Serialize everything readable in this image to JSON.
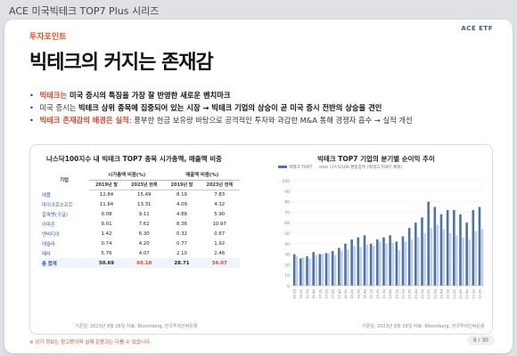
{
  "window": {
    "title": "ACE 미국빅테크 TOP7 Plus 시리즈"
  },
  "slide": {
    "logo": "ACE ETF",
    "badge": "투자포인트",
    "headline": "빅테크의 커지는 존재감",
    "bullets": [
      {
        "a": "빅테크는 ",
        "b": "미국 증시의 특징을 가장 잘 반영한 새로운 벤치마크",
        "c": ""
      },
      {
        "a": "미국 증시는 ",
        "b": "빅테크 상위 종목에 집중",
        "c": "되어 있는 시장 → 빅테크 기업의 상승이 곧 미국 증시 전반의 상승을 견인"
      },
      {
        "a": "빅테크 존재감의 배경은 실적",
        "b": ": 풍부한 현금 보유량 바탕으로 공격적인 투자와 과감한 M&A 통해 경쟁자 흡수 → 실적 개선",
        "c": ""
      }
    ],
    "footnote": "※ 상기 정보는 참고용이며 실제 운용과는 다를 수 있습니다.",
    "page": "9 / 30"
  },
  "table": {
    "title": "나스닥100지수 내 빅테크 TOP7 종목 시가총액, 매출액 비중",
    "col_label": "기업",
    "group1": "시가총액 비중(%)",
    "group2": "매출액 비중(%)",
    "sub": [
      "2019년 말",
      "2023년 현재",
      "2019년 말",
      "2023년 현재"
    ],
    "rows": [
      {
        "name": "애플",
        "v": [
          "12.84",
          "15.49",
          "8.19",
          "7.83"
        ]
      },
      {
        "name": "마이크로소프트",
        "v": [
          "11.84",
          "13.31",
          "4.09",
          "4.32"
        ]
      },
      {
        "name": "알파벳(구글)",
        "v": [
          "9.08",
          "9.11",
          "4.88",
          "5.90"
        ]
      },
      {
        "name": "아마존",
        "v": [
          "9.01",
          "7.62",
          "8.36",
          "10.97"
        ]
      },
      {
        "name": "엔비디아",
        "v": [
          "1.42",
          "6.30",
          "0.32",
          "0.67"
        ]
      },
      {
        "name": "테슬라",
        "v": [
          "0.74",
          "4.20",
          "0.77",
          "1.92"
        ]
      },
      {
        "name": "메타",
        "v": [
          "5.76",
          "4.07",
          "2.10",
          "2.46"
        ]
      }
    ],
    "total": {
      "name": "총 합계",
      "v": [
        "50.69",
        "60.10",
        "28.71",
        "34.07"
      ]
    },
    "source": "기준일: 2023년 8월 28일    자료: Bloomberg, 한국투자신탁운용"
  },
  "chart_data": {
    "type": "bar",
    "title": "빅테크 TOP7 기업의 분기별 순이익 추이",
    "legend": [
      "빅테크 TOP7",
      "나스닥100 편입종목 (빅테크 TOP7 제외)"
    ],
    "colors": {
      "bigtech": "#4a72b0",
      "others": "#c5cfdf"
    },
    "categories": [
      "16.1Q",
      "16.2Q",
      "16.3Q",
      "16.4Q",
      "17.1Q",
      "17.2Q",
      "17.3Q",
      "17.4Q",
      "18.1Q",
      "18.2Q",
      "18.3Q",
      "18.4Q",
      "19.1Q",
      "19.2Q",
      "19.3Q",
      "19.4Q",
      "20.1Q",
      "20.2Q",
      "20.3Q",
      "20.4Q",
      "21.1Q",
      "21.2Q",
      "21.3Q",
      "21.4Q",
      "22.1Q",
      "22.2Q",
      "22.3Q",
      "22.4Q",
      "23.1Q",
      "23.2Q"
    ],
    "series": [
      {
        "name": "빅테크 TOP7",
        "values": [
          30,
          26,
          28,
          32,
          30,
          31,
          33,
          36,
          40,
          44,
          46,
          48,
          40,
          44,
          46,
          48,
          42,
          47,
          55,
          60,
          65,
          80,
          75,
          68,
          72,
          72,
          68,
          60,
          72,
          75
        ]
      },
      {
        "name": "나스닥100 편입종목 (빅테크 TOP7 제외)",
        "values": [
          28,
          27,
          26,
          29,
          30,
          31,
          29,
          33,
          34,
          38,
          37,
          39,
          38,
          42,
          40,
          41,
          34,
          42,
          44,
          46,
          50,
          55,
          58,
          54,
          50,
          48,
          46,
          44,
          52,
          54
        ]
      }
    ],
    "ylim": [
      0,
      100
    ],
    "yticks": [
      "100",
      "90",
      "80",
      "70",
      "60",
      "50",
      "40",
      "30",
      "20",
      "10",
      "0"
    ],
    "source": "기준일: 2023년 8월 28일    자료: Bloomberg, 한국투자신탁운용"
  }
}
